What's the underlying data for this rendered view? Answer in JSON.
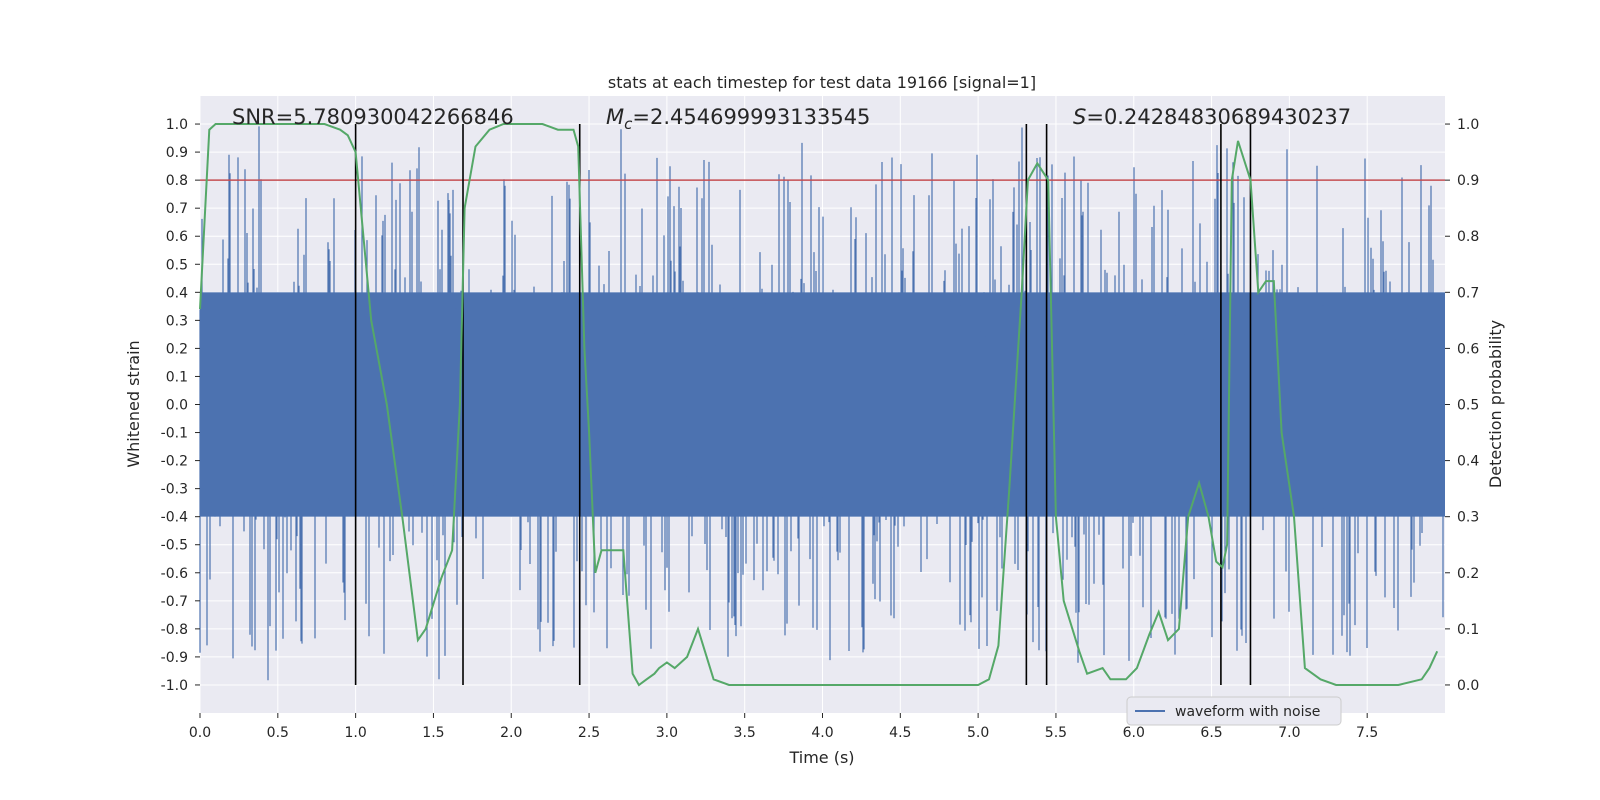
{
  "chart_data": {
    "type": "line",
    "title": "stats at each timestep for test data 19166 [signal=1]",
    "xlabel": "Time (s)",
    "ylabel_left": "Whitened strain",
    "ylabel_right": "Detection probability",
    "xlim": [
      0,
      8
    ],
    "ylim_left": [
      -1.1,
      1.1
    ],
    "ylim_right": [
      -0.05,
      1.05
    ],
    "x_ticks": [
      "0.0",
      "0.5",
      "1.0",
      "1.5",
      "2.0",
      "2.5",
      "3.0",
      "3.5",
      "4.0",
      "4.5",
      "5.0",
      "5.5",
      "6.0",
      "6.5",
      "7.0",
      "7.5"
    ],
    "y_ticks_left": [
      "1.0",
      "0.9",
      "0.8",
      "0.7",
      "0.6",
      "0.5",
      "0.4",
      "0.3",
      "0.2",
      "0.1",
      "0.0",
      "-0.1",
      "-0.2",
      "-0.3",
      "-0.4",
      "-0.5",
      "-0.6",
      "-0.7",
      "-0.8",
      "-0.9",
      "-1.0"
    ],
    "y_ticks_right": [
      "1.0",
      "0.9",
      "0.8",
      "0.7",
      "0.6",
      "0.5",
      "0.4",
      "0.3",
      "0.2",
      "0.1",
      "0.0"
    ],
    "annotations": {
      "snr": "SNR=5.780930042266846",
      "mc_prefix": "M",
      "mc_sub": "c",
      "mc_value": "=2.454699993133545",
      "s_prefix": "S",
      "s_value": "=0.24284830689430237"
    },
    "legend": {
      "label": "waveform with noise",
      "placement": "lower right"
    },
    "threshold": {
      "value": 0.9,
      "axis": "right",
      "color": "#c44e52"
    },
    "vertical_lines_x": [
      1.0,
      1.69,
      2.44,
      5.31,
      5.44,
      6.56,
      6.75
    ],
    "waveform": {
      "name": "waveform with noise",
      "color": "#4c72b0",
      "core_amplitude": 0.4,
      "peak_range": [
        -1.0,
        1.0
      ]
    },
    "probability": {
      "color": "#55a868",
      "x": [
        0.0,
        0.06,
        0.1,
        0.2,
        0.3,
        0.4,
        0.5,
        0.6,
        0.7,
        0.8,
        0.9,
        0.95,
        1.0,
        1.1,
        1.2,
        1.3,
        1.4,
        1.45,
        1.55,
        1.62,
        1.67,
        1.7,
        1.77,
        1.86,
        1.95,
        2.05,
        2.2,
        2.3,
        2.4,
        2.43,
        2.47,
        2.5,
        2.54,
        2.58,
        2.63,
        2.72,
        2.78,
        2.82,
        2.87,
        2.92,
        2.95,
        3.0,
        3.05,
        3.13,
        3.2,
        3.3,
        3.4,
        3.5,
        4.0,
        4.3,
        4.5,
        5.0,
        5.07,
        5.13,
        5.2,
        5.28,
        5.32,
        5.38,
        5.45,
        5.5,
        5.55,
        5.65,
        5.7,
        5.8,
        5.85,
        5.9,
        5.95,
        6.02,
        6.1,
        6.16,
        6.22,
        6.29,
        6.35,
        6.42,
        6.48,
        6.53,
        6.57,
        6.6,
        6.63,
        6.67,
        6.75,
        6.8,
        6.85,
        6.9,
        6.95,
        7.03,
        7.1,
        7.2,
        7.3,
        7.5,
        7.7,
        7.85,
        7.9,
        7.95
      ],
      "y": [
        0.67,
        0.99,
        1.0,
        1.0,
        1.0,
        1.0,
        1.0,
        1.0,
        1.0,
        1.0,
        0.99,
        0.98,
        0.95,
        0.65,
        0.5,
        0.3,
        0.08,
        0.1,
        0.19,
        0.24,
        0.5,
        0.85,
        0.96,
        0.99,
        1.0,
        1.0,
        1.0,
        0.99,
        0.99,
        0.96,
        0.6,
        0.45,
        0.2,
        0.24,
        0.24,
        0.24,
        0.02,
        0.0,
        0.01,
        0.02,
        0.03,
        0.04,
        0.03,
        0.05,
        0.1,
        0.01,
        0.0,
        0.0,
        0.0,
        0.0,
        0.0,
        0.0,
        0.01,
        0.07,
        0.35,
        0.7,
        0.9,
        0.93,
        0.9,
        0.3,
        0.15,
        0.06,
        0.02,
        0.03,
        0.01,
        0.01,
        0.01,
        0.03,
        0.09,
        0.13,
        0.08,
        0.1,
        0.3,
        0.36,
        0.3,
        0.22,
        0.21,
        0.25,
        0.9,
        0.97,
        0.9,
        0.7,
        0.72,
        0.72,
        0.45,
        0.3,
        0.03,
        0.01,
        0.0,
        0.0,
        0.0,
        0.01,
        0.03,
        0.06
      ]
    }
  }
}
